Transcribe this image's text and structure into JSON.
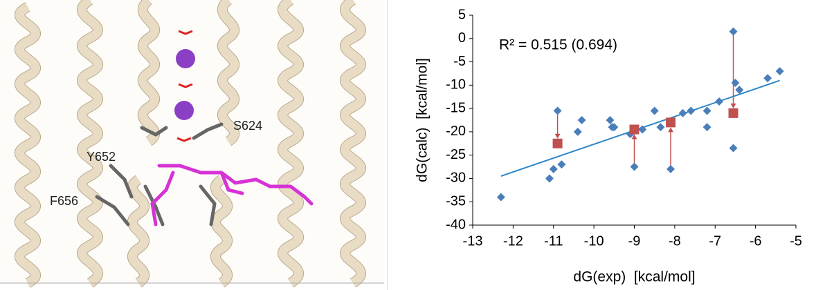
{
  "image_panel": {
    "labels": [
      "S624",
      "Y652",
      "F656"
    ]
  },
  "chart_data": {
    "type": "scatter",
    "annotation": "R² = 0.515 (0.694)",
    "x_label": "dG(exp)  [kcal/mol]",
    "y_label": "dG(calc)  [kcal/mol]",
    "xlim": [
      -13,
      -5
    ],
    "ylim": [
      -40,
      5
    ],
    "xticks": [
      -13,
      -12,
      -11,
      -10,
      -9,
      -8,
      -7,
      -6,
      -5
    ],
    "yticks": [
      5,
      0,
      -5,
      -10,
      -15,
      -20,
      -25,
      -30,
      -35,
      -40
    ],
    "series": [
      {
        "color": "#4a7ebb",
        "marker": "diamond",
        "x": [
          -12.3,
          -11.1,
          -11.0,
          -10.8,
          -10.9,
          -10.4,
          -10.3,
          -9.6,
          -9.55,
          -9.5,
          -9.1,
          -9.0,
          -9.0,
          -8.8,
          -8.5,
          -8.35,
          -8.1,
          -8.1,
          -7.8,
          -7.6,
          -7.2,
          -7.2,
          -6.9,
          -6.55,
          -6.5,
          -6.55,
          -6.4,
          -5.7,
          -5.4
        ],
        "values": [
          -34,
          -30,
          -28,
          -27,
          -15.5,
          -20,
          -17.5,
          -17.5,
          -19,
          -19,
          -20.5,
          -19.5,
          -27.5,
          -19.5,
          -15.5,
          -19,
          -18,
          -28,
          -16,
          -15.5,
          -19,
          -15.5,
          -13.5,
          1.5,
          -9.5,
          -23.5,
          -11,
          -8.5,
          -7
        ]
      },
      {
        "color": "#c0504d",
        "marker": "square",
        "x": [
          -10.9,
          -9.0,
          -8.1,
          -6.55
        ],
        "values": [
          -22.5,
          -19.5,
          -18,
          -16
        ],
        "arrow_from": [
          -15.5,
          -27.5,
          -28,
          1.5
        ]
      }
    ],
    "trendline": {
      "color": "#2e86c8",
      "x": [
        -12.3,
        -5.4
      ],
      "y": [
        -29.5,
        -9
      ]
    }
  }
}
